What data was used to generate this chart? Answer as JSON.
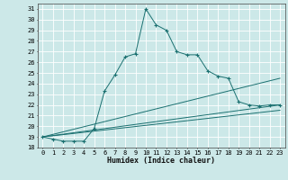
{
  "xlabel": "Humidex (Indice chaleur)",
  "bg_color": "#cce8e8",
  "grid_color": "#ffffff",
  "line_color": "#1a7070",
  "xlim": [
    -0.5,
    23.5
  ],
  "ylim": [
    18,
    31.5
  ],
  "xticks": [
    0,
    1,
    2,
    3,
    4,
    5,
    6,
    7,
    8,
    9,
    10,
    11,
    12,
    13,
    14,
    15,
    16,
    17,
    18,
    19,
    20,
    21,
    22,
    23
  ],
  "yticks": [
    18,
    19,
    20,
    21,
    22,
    23,
    24,
    25,
    26,
    27,
    28,
    29,
    30,
    31
  ],
  "series_main": {
    "x": [
      0,
      1,
      2,
      3,
      4,
      5,
      6,
      7,
      8,
      9,
      10,
      11,
      12,
      13,
      14,
      15,
      16,
      17,
      18,
      19,
      20,
      21,
      22,
      23
    ],
    "y": [
      19,
      18.8,
      18.6,
      18.6,
      18.6,
      19.8,
      23.3,
      24.8,
      26.5,
      26.8,
      31.0,
      29.5,
      29.0,
      27.0,
      26.7,
      26.7,
      25.2,
      24.7,
      24.5,
      22.3,
      22.0,
      21.9,
      22.0,
      22.0
    ]
  },
  "series_lines": [
    {
      "x": [
        0,
        23
      ],
      "y": [
        19,
        24.5
      ]
    },
    {
      "x": [
        0,
        23
      ],
      "y": [
        19,
        22.0
      ]
    },
    {
      "x": [
        0,
        23
      ],
      "y": [
        19,
        21.5
      ]
    }
  ]
}
